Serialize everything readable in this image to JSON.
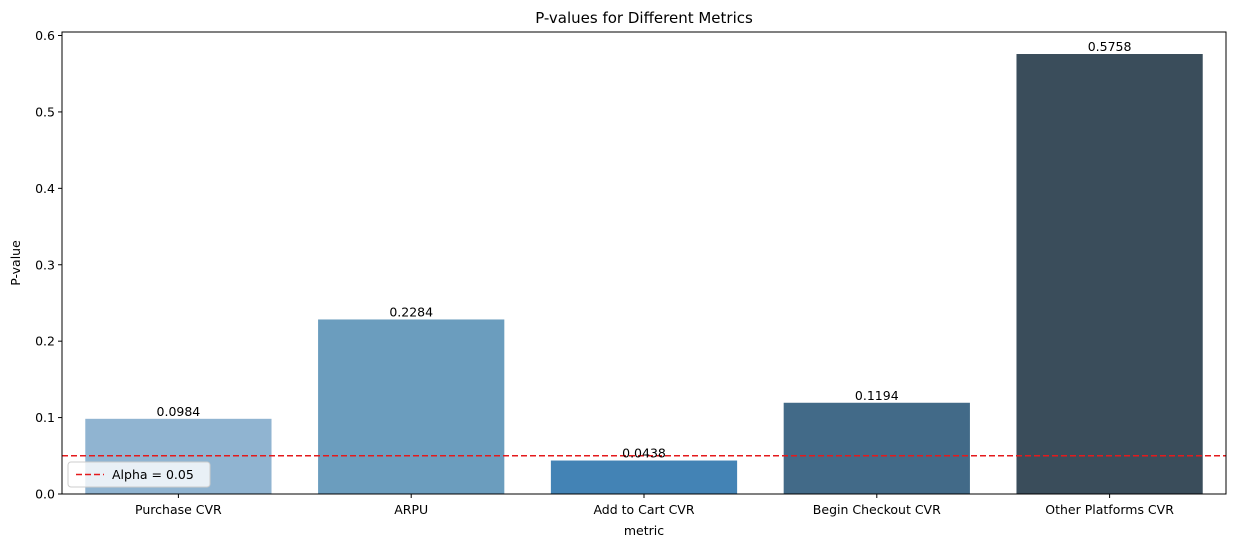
{
  "chart_data": {
    "type": "bar",
    "title": "P-values for Different Metrics",
    "xlabel": "metric",
    "ylabel": "P-value",
    "categories": [
      "Purchase CVR",
      "ARPU",
      "Add to Cart CVR",
      "Begin Checkout CVR",
      "Other Platforms CVR"
    ],
    "values": [
      0.0984,
      0.2284,
      0.0438,
      0.1194,
      0.5758
    ],
    "data_labels": [
      "0.0984",
      "0.2284",
      "0.0438",
      "0.1194",
      "0.5758"
    ],
    "colors": [
      "#90b4d1",
      "#6b9dbe",
      "#4383b5",
      "#426a88",
      "#3a4d5b"
    ],
    "ylim": [
      0,
      0.6046
    ],
    "yticks": [
      0.0,
      0.1,
      0.2,
      0.3,
      0.4,
      0.5,
      0.6
    ],
    "ytick_labels": [
      "0.0",
      "0.1",
      "0.2",
      "0.3",
      "0.4",
      "0.5",
      "0.6"
    ],
    "reference_line": {
      "value": 0.05,
      "label": "Alpha = 0.05",
      "color": "#e41a1c",
      "style": "dashed"
    },
    "legend": {
      "position": "lower-left",
      "entries": [
        "Alpha = 0.05"
      ]
    },
    "grid": false
  }
}
